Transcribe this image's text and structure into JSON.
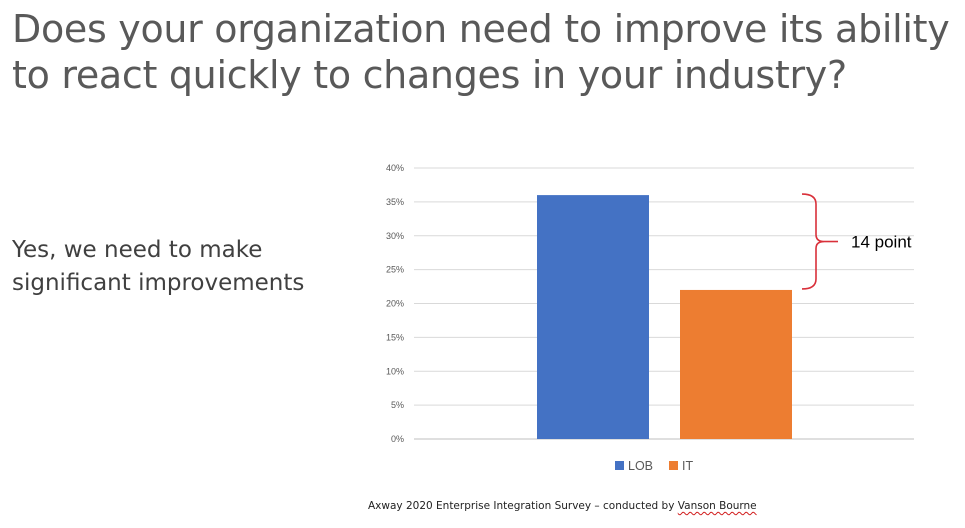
{
  "slide": {
    "title_lines": [
      "Does your organization need to improve its ability",
      "to react quickly to changes in your industry?"
    ],
    "subtitle_lines": [
      "Yes, we need to make",
      "significant improvements"
    ],
    "source_main": "Axway 2020 Enterprise Integration Survey – conducted by ",
    "source_underlined": "Vanson Bourne"
  },
  "chart_data": {
    "type": "bar",
    "categories": [
      ""
    ],
    "series": [
      {
        "name": "LOB",
        "values": [
          0.36
        ],
        "color": "#4472c4"
      },
      {
        "name": "IT",
        "values": [
          0.22
        ],
        "color": "#ed7d31"
      }
    ],
    "ylim": [
      0,
      0.4
    ],
    "yticks": [
      "0%",
      "5%",
      "10%",
      "15%",
      "20%",
      "25%",
      "30%",
      "35%",
      "40%"
    ],
    "grid": true,
    "legend": "bottom",
    "annotation": {
      "text": "14 point",
      "from_value": 0.36,
      "to_value": 0.22,
      "color": "#d9303a"
    }
  }
}
